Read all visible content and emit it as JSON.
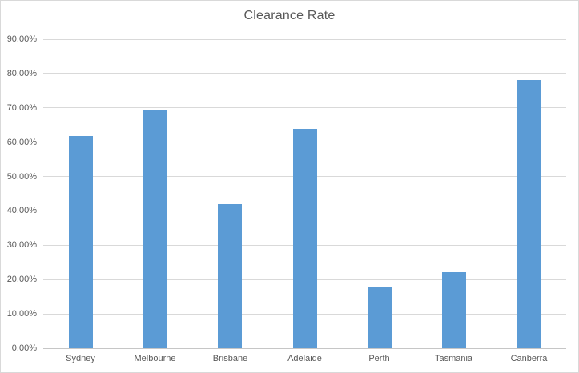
{
  "chart_data": {
    "type": "bar",
    "title": "Clearance Rate",
    "categories": [
      "Sydney",
      "Melbourne",
      "Brisbane",
      "Adelaide",
      "Perth",
      "Tasmania",
      "Canberra"
    ],
    "values": [
      61.7,
      69.2,
      42.0,
      63.8,
      17.8,
      22.2,
      78.2
    ],
    "unit": "%",
    "ylim": [
      0,
      90
    ],
    "y_tick_step": 10,
    "y_tick_labels": [
      "0.00%",
      "10.00%",
      "20.00%",
      "30.00%",
      "40.00%",
      "50.00%",
      "60.00%",
      "70.00%",
      "80.00%",
      "90.00%"
    ],
    "grid": true,
    "legend": "none",
    "colors": {
      "bar": "#5b9bd5",
      "text": "#595959",
      "gridline": "#d9d9d9",
      "chart_border": "#d9d9d9",
      "background": "#ffffff"
    }
  }
}
